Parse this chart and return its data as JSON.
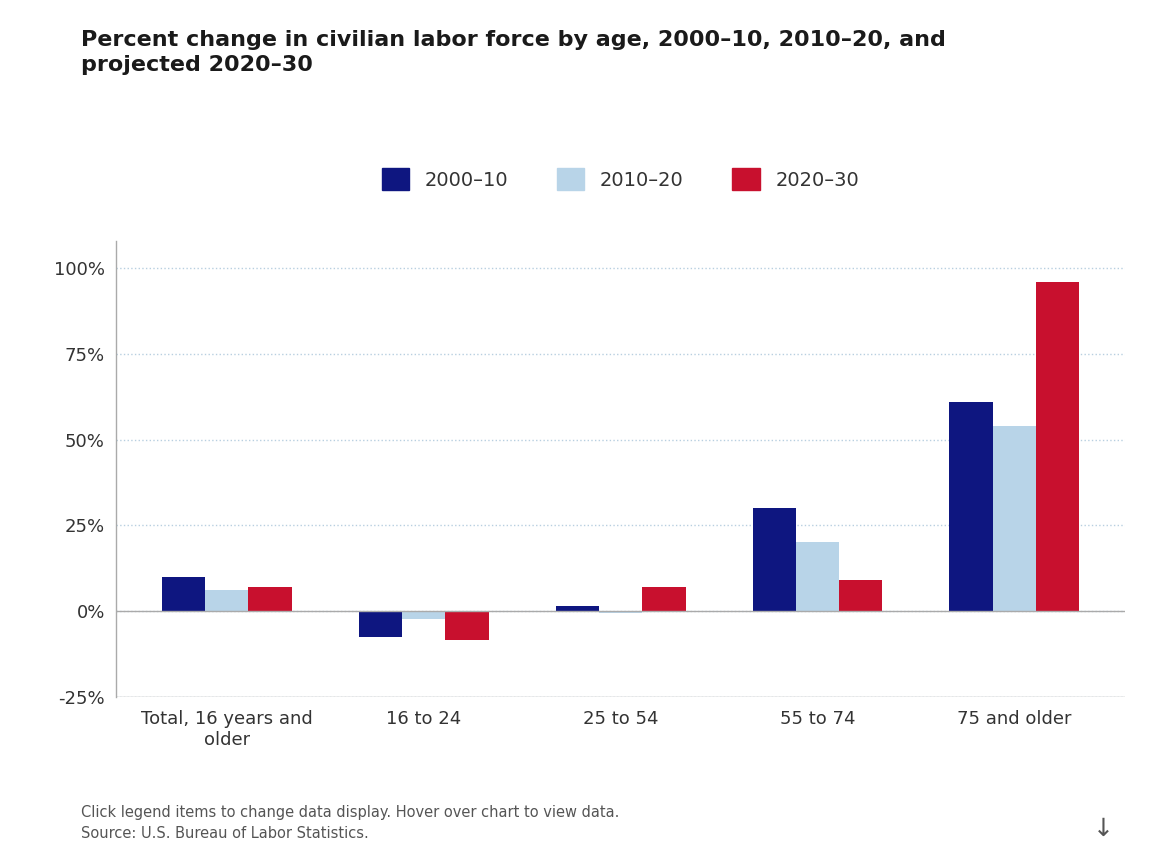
{
  "title": "Percent change in civilian labor force by age, 2000–10, 2010–20, and\nprojected 2020–30",
  "categories": [
    "Total, 16 years and\nolder",
    "16 to 24",
    "25 to 54",
    "55 to 74",
    "75 and older"
  ],
  "series": {
    "2000–10": [
      10.0,
      -7.5,
      1.5,
      30.0,
      61.0
    ],
    "2010–20": [
      6.0,
      -2.5,
      -0.7,
      20.0,
      54.0
    ],
    "2020–30": [
      7.0,
      -8.5,
      7.0,
      9.0,
      96.0
    ]
  },
  "colors": {
    "2000–10": "#0e1680",
    "2010–20": "#b8d4e8",
    "2020–30": "#c8102e"
  },
  "legend_labels": [
    "2000–10",
    "2010–20",
    "2020–30"
  ],
  "ylim": [
    -25,
    108
  ],
  "yticks": [
    -25,
    0,
    25,
    50,
    75,
    100
  ],
  "ytick_labels": [
    "-25%",
    "0%",
    "25%",
    "50%",
    "75%",
    "100%"
  ],
  "background_color": "#ffffff",
  "grid_color": "#b8cfe0",
  "footer_text": "Click legend items to change data display. Hover over chart to view data.\nSource: U.S. Bureau of Labor Statistics.",
  "bar_width": 0.22,
  "spine_color": "#aaaaaa"
}
